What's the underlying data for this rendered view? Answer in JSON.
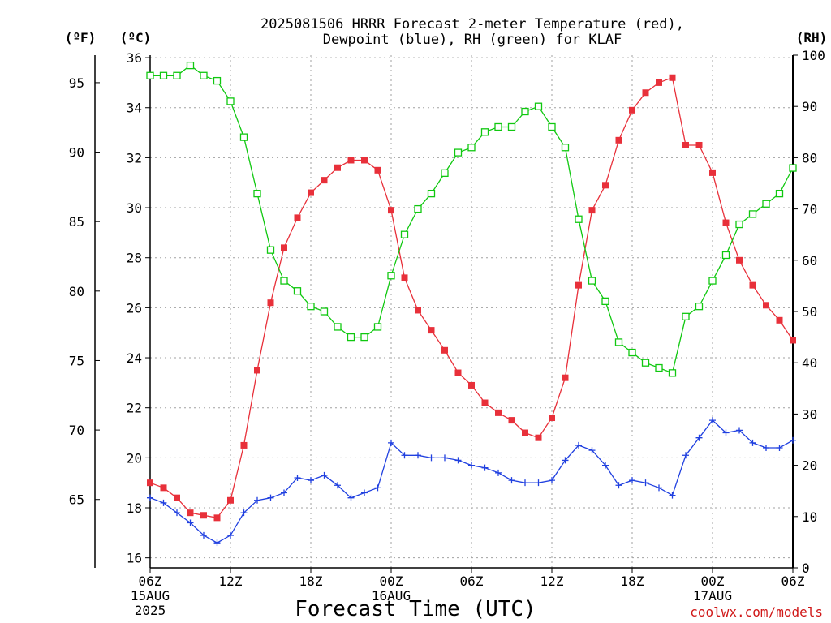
{
  "title": {
    "line1": "2025081506 HRRR Forecast 2-meter Temperature (red),",
    "line2": "Dewpoint (blue), RH (green) for KLAF"
  },
  "units": {
    "f": "(ºF)",
    "c": "(ºC)",
    "rh": "(RH)"
  },
  "credit": "coolwx.com/models",
  "colors": {
    "temperature": "#e8303a",
    "dewpoint": "#2040e0",
    "rh": "#10c810",
    "credit": "#d01818"
  },
  "chart_data": {
    "type": "line",
    "xlabel": "Forecast Time (UTC)",
    "xlim": [
      0,
      48
    ],
    "x": [
      0,
      1,
      2,
      3,
      4,
      5,
      6,
      7,
      8,
      9,
      10,
      11,
      12,
      13,
      14,
      15,
      16,
      17,
      18,
      19,
      20,
      21,
      22,
      23,
      24,
      25,
      26,
      27,
      28,
      29,
      30,
      31,
      32,
      33,
      34,
      35,
      36,
      37,
      38,
      39,
      40,
      41,
      42,
      43,
      44,
      45,
      46,
      47,
      48
    ],
    "x_ticks": [
      {
        "hour": 0,
        "label": "06Z",
        "sub": [
          "15AUG",
          "2025"
        ]
      },
      {
        "hour": 6,
        "label": "12Z",
        "sub": []
      },
      {
        "hour": 12,
        "label": "18Z",
        "sub": []
      },
      {
        "hour": 18,
        "label": "00Z",
        "sub": [
          "16AUG"
        ]
      },
      {
        "hour": 24,
        "label": "06Z",
        "sub": []
      },
      {
        "hour": 30,
        "label": "12Z",
        "sub": []
      },
      {
        "hour": 36,
        "label": "18Z",
        "sub": []
      },
      {
        "hour": 42,
        "label": "00Z",
        "sub": [
          "17AUG"
        ]
      },
      {
        "hour": 48,
        "label": "06Z",
        "sub": []
      }
    ],
    "y_celsius": {
      "label": "(ºC)",
      "lim": [
        15.6,
        36.1
      ],
      "ticks": [
        16,
        18,
        20,
        22,
        24,
        26,
        28,
        30,
        32,
        34,
        36
      ]
    },
    "y_fahrenheit": {
      "label": "(ºF)",
      "ticks": [
        65,
        70,
        75,
        80,
        85,
        90,
        95
      ]
    },
    "y_rh": {
      "label": "(RH)",
      "lim": [
        0,
        100
      ],
      "ticks": [
        0,
        10,
        20,
        30,
        40,
        50,
        60,
        70,
        80,
        90,
        100
      ]
    },
    "grid": true,
    "series": [
      {
        "name": "Temperature",
        "axis": "celsius",
        "marker": "filled-square",
        "color": "#e8303a",
        "values": [
          19.0,
          18.8,
          18.4,
          17.8,
          17.7,
          17.6,
          18.3,
          20.5,
          23.5,
          26.2,
          28.4,
          29.6,
          30.6,
          31.1,
          31.6,
          31.9,
          31.9,
          31.5,
          29.9,
          27.2,
          25.9,
          25.1,
          24.3,
          23.4,
          22.9,
          22.2,
          21.8,
          21.5,
          21.0,
          20.8,
          21.6,
          23.2,
          26.9,
          29.9,
          30.9,
          32.7,
          33.9,
          34.6,
          35.0,
          35.2,
          32.5,
          32.5,
          31.4,
          29.4,
          27.9,
          26.9,
          26.1,
          25.5,
          24.7
        ]
      },
      {
        "name": "Dewpoint",
        "axis": "celsius",
        "marker": "plus",
        "color": "#2040e0",
        "values": [
          18.4,
          18.2,
          17.8,
          17.4,
          16.9,
          16.6,
          16.9,
          17.8,
          18.3,
          18.4,
          18.6,
          19.2,
          19.1,
          19.3,
          18.9,
          18.4,
          18.6,
          18.8,
          20.6,
          20.1,
          20.1,
          20.0,
          20.0,
          19.9,
          19.7,
          19.6,
          19.4,
          19.1,
          19.0,
          19.0,
          19.1,
          19.9,
          20.5,
          20.3,
          19.7,
          18.9,
          19.1,
          19.0,
          18.8,
          18.5,
          20.1,
          20.8,
          21.5,
          21.0,
          21.1,
          20.6,
          20.4,
          20.4,
          20.7
        ]
      },
      {
        "name": "RH",
        "axis": "rh",
        "marker": "open-square",
        "color": "#10c810",
        "values": [
          96,
          96,
          96,
          98,
          96,
          95,
          91,
          84,
          73,
          62,
          56,
          54,
          51,
          50,
          47,
          45,
          45,
          47,
          57,
          65,
          70,
          73,
          77,
          81,
          82,
          85,
          86,
          86,
          89,
          90,
          86,
          82,
          68,
          56,
          52,
          44,
          42,
          40,
          39,
          38,
          49,
          51,
          56,
          61,
          67,
          69,
          71,
          73,
          78
        ]
      }
    ]
  }
}
